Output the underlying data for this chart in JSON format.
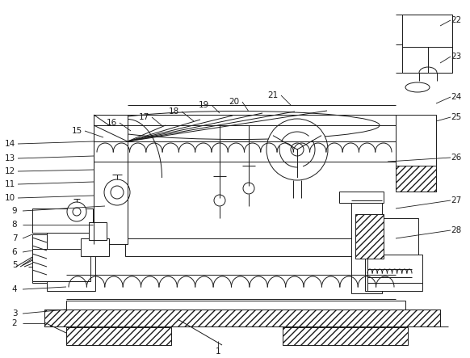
{
  "bg_color": "#ffffff",
  "line_color": "#1a1a1a",
  "fig_width": 5.82,
  "fig_height": 4.43,
  "dpi": 100
}
